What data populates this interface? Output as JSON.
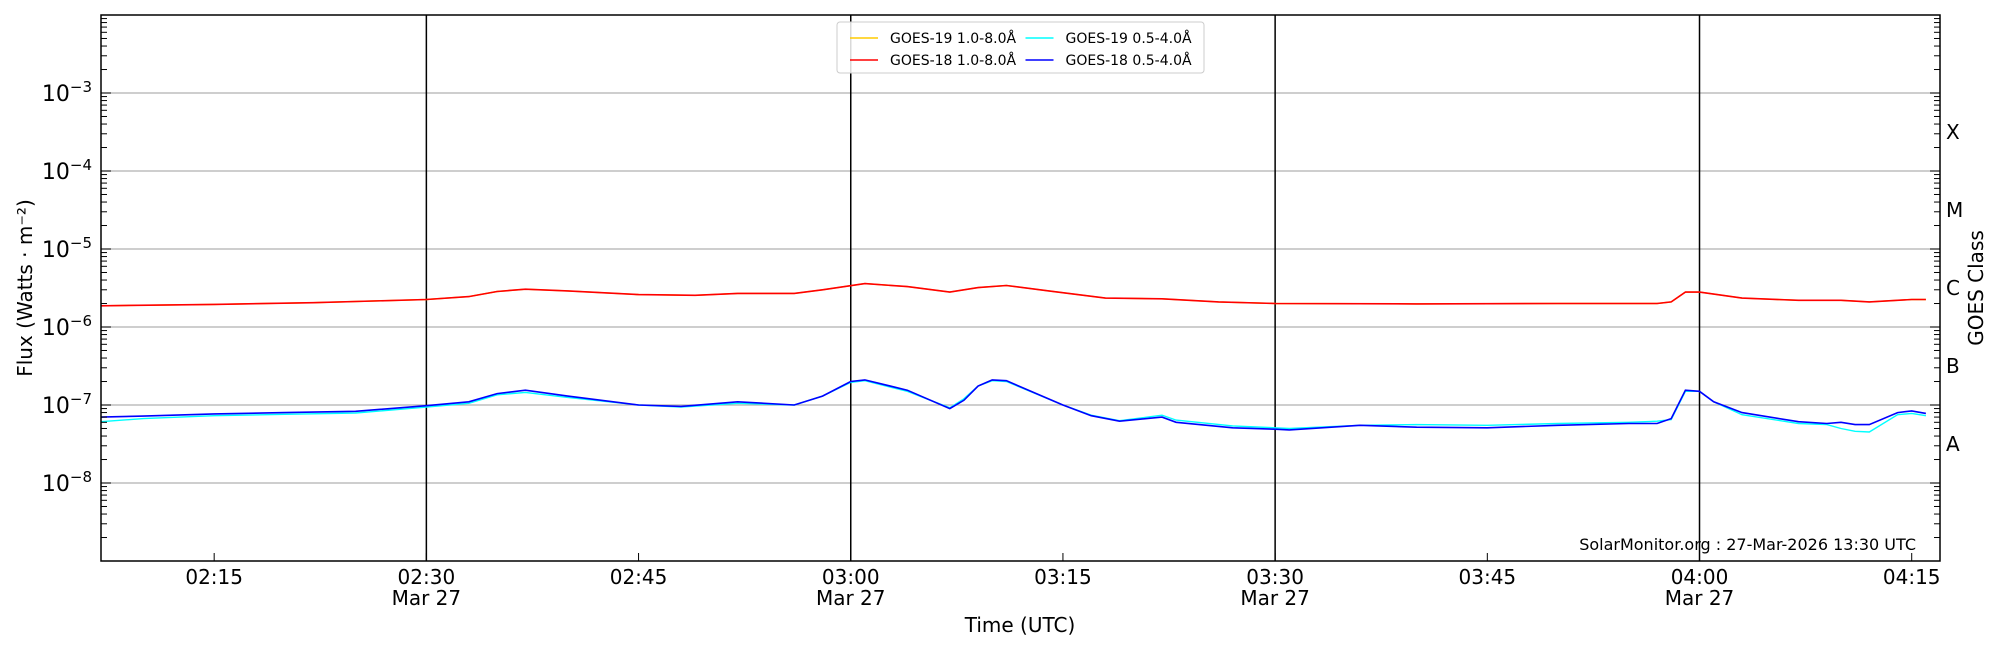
{
  "chart_data": {
    "type": "line",
    "title": "",
    "xlabel": "Time (UTC)",
    "ylabel": "Flux (Watts · m⁻²)",
    "ylabel_right": "GOES Class",
    "yscale": "log",
    "ylim": [
      1e-09,
      0.01
    ],
    "xlim": [
      "02:07",
      "04:17"
    ],
    "grid": "horizontal at decades",
    "legend_placement": "top-center",
    "y_ticks": [
      {
        "value": 0.001,
        "base": "10",
        "exp": "−3"
      },
      {
        "value": 0.0001,
        "base": "10",
        "exp": "−4"
      },
      {
        "value": 1e-05,
        "base": "10",
        "exp": "−5"
      },
      {
        "value": 1e-06,
        "base": "10",
        "exp": "−6"
      },
      {
        "value": 1e-07,
        "base": "10",
        "exp": "−7"
      },
      {
        "value": 1e-08,
        "base": "10",
        "exp": "−8"
      }
    ],
    "class_labels": [
      {
        "label": "X",
        "value": 0.000316
      },
      {
        "label": "M",
        "value": 3.16e-05
      },
      {
        "label": "C",
        "value": 3.16e-06
      },
      {
        "label": "B",
        "value": 3.16e-07
      },
      {
        "label": "A",
        "value": 3.16e-08
      }
    ],
    "x_ticks": [
      {
        "time": "02:15",
        "label": "02:15",
        "sub": ""
      },
      {
        "time": "02:30",
        "label": "02:30",
        "sub": "Mar 27"
      },
      {
        "time": "02:45",
        "label": "02:45",
        "sub": ""
      },
      {
        "time": "03:00",
        "label": "03:00",
        "sub": "Mar 27"
      },
      {
        "time": "03:15",
        "label": "03:15",
        "sub": ""
      },
      {
        "time": "03:30",
        "label": "03:30",
        "sub": "Mar 27"
      },
      {
        "time": "03:45",
        "label": "03:45",
        "sub": ""
      },
      {
        "time": "04:00",
        "label": "04:00",
        "sub": "Mar 27"
      },
      {
        "time": "04:15",
        "label": "04:15",
        "sub": ""
      }
    ],
    "vertical_lines": [
      "02:30",
      "03:00",
      "03:30",
      "04:00"
    ],
    "annotation": "SolarMonitor.org : 27-Mar-2026 13:30 UTC",
    "series": [
      {
        "name": "GOES-19 1.0-8.0Å",
        "color": "#ffcc00",
        "x": [
          "02:07",
          "02:15",
          "02:22",
          "02:30",
          "02:33",
          "02:35",
          "02:37",
          "02:40",
          "02:45",
          "02:49",
          "02:52",
          "02:56",
          "02:58",
          "03:01",
          "03:04",
          "03:07",
          "03:09",
          "03:11",
          "03:14",
          "03:18",
          "03:22",
          "03:26",
          "03:30",
          "03:40",
          "03:50",
          "03:57",
          "03:58",
          "03:59",
          "04:00",
          "04:03",
          "04:07",
          "04:10",
          "04:12",
          "04:15",
          "04:16"
        ],
        "y": [
          1.87e-06,
          1.95e-06,
          2.05e-06,
          2.25e-06,
          2.45e-06,
          2.85e-06,
          3.05e-06,
          2.9e-06,
          2.6e-06,
          2.55e-06,
          2.7e-06,
          2.7e-06,
          3e-06,
          3.6e-06,
          3.3e-06,
          2.8e-06,
          3.2e-06,
          3.4e-06,
          2.9e-06,
          2.35e-06,
          2.3e-06,
          2.1e-06,
          2e-06,
          1.98e-06,
          2e-06,
          2e-06,
          2.1e-06,
          2.8e-06,
          2.8e-06,
          2.35e-06,
          2.2e-06,
          2.2e-06,
          2.1e-06,
          2.25e-06,
          2.25e-06
        ]
      },
      {
        "name": "GOES-18 1.0-8.0Å",
        "color": "#ff0000",
        "x": [
          "02:07",
          "02:15",
          "02:22",
          "02:30",
          "02:33",
          "02:35",
          "02:37",
          "02:40",
          "02:45",
          "02:49",
          "02:52",
          "02:56",
          "02:58",
          "03:01",
          "03:04",
          "03:07",
          "03:09",
          "03:11",
          "03:14",
          "03:18",
          "03:22",
          "03:26",
          "03:30",
          "03:40",
          "03:50",
          "03:57",
          "03:58",
          "03:59",
          "04:00",
          "04:03",
          "04:07",
          "04:10",
          "04:12",
          "04:15",
          "04:16"
        ],
        "y": [
          1.87e-06,
          1.95e-06,
          2.05e-06,
          2.25e-06,
          2.45e-06,
          2.85e-06,
          3.05e-06,
          2.9e-06,
          2.6e-06,
          2.55e-06,
          2.7e-06,
          2.7e-06,
          3e-06,
          3.6e-06,
          3.3e-06,
          2.8e-06,
          3.2e-06,
          3.4e-06,
          2.9e-06,
          2.35e-06,
          2.3e-06,
          2.1e-06,
          2e-06,
          1.98e-06,
          2e-06,
          2e-06,
          2.1e-06,
          2.8e-06,
          2.8e-06,
          2.35e-06,
          2.2e-06,
          2.2e-06,
          2.1e-06,
          2.25e-06,
          2.25e-06
        ]
      },
      {
        "name": "GOES-19 0.5-4.0Å",
        "color": "#00ffff",
        "x": [
          "02:07",
          "02:10",
          "02:15",
          "02:20",
          "02:25",
          "02:30",
          "02:33",
          "02:35",
          "02:37",
          "02:40",
          "02:45",
          "02:48",
          "02:52",
          "02:56",
          "02:58",
          "03:00",
          "03:01",
          "03:04",
          "03:07",
          "03:08",
          "03:09",
          "03:10",
          "03:11",
          "03:15",
          "03:17",
          "03:19",
          "03:22",
          "03:23",
          "03:27",
          "03:30",
          "03:31",
          "03:36",
          "03:40",
          "03:45",
          "03:50",
          "03:55",
          "03:57",
          "03:58",
          "03:59",
          "04:00",
          "04:01",
          "04:03",
          "04:07",
          "04:09",
          "04:10",
          "04:11",
          "04:12",
          "04:14",
          "04:15",
          "04:16"
        ],
        "y": [
          6.1e-08,
          6.7e-08,
          7.3e-08,
          7.6e-08,
          7.9e-08,
          9.4e-08,
          1.05e-07,
          1.35e-07,
          1.45e-07,
          1.25e-07,
          1e-07,
          9.4e-08,
          1.05e-07,
          1e-07,
          1.3e-07,
          1.95e-07,
          2.05e-07,
          1.5e-07,
          9.2e-08,
          1.2e-07,
          1.75e-07,
          2.05e-07,
          2e-07,
          1e-07,
          7.4e-08,
          6.3e-08,
          7.4e-08,
          6.4e-08,
          5.4e-08,
          5.1e-08,
          5e-08,
          5.5e-08,
          5.6e-08,
          5.5e-08,
          5.8e-08,
          6e-08,
          6.2e-08,
          6.5e-08,
          1.5e-07,
          1.5e-07,
          1.1e-07,
          7.5e-08,
          5.8e-08,
          5.6e-08,
          5e-08,
          4.6e-08,
          4.5e-08,
          7.5e-08,
          7.8e-08,
          7.3e-08
        ]
      },
      {
        "name": "GOES-18 0.5-4.0Å",
        "color": "#0000ff",
        "x": [
          "02:07",
          "02:10",
          "02:15",
          "02:20",
          "02:25",
          "02:30",
          "02:33",
          "02:35",
          "02:37",
          "02:40",
          "02:45",
          "02:48",
          "02:52",
          "02:56",
          "02:58",
          "03:00",
          "03:01",
          "03:04",
          "03:07",
          "03:08",
          "03:09",
          "03:10",
          "03:11",
          "03:15",
          "03:17",
          "03:19",
          "03:22",
          "03:23",
          "03:27",
          "03:30",
          "03:31",
          "03:36",
          "03:40",
          "03:45",
          "03:50",
          "03:55",
          "03:57",
          "03:58",
          "03:59",
          "04:00",
          "04:01",
          "04:03",
          "04:07",
          "04:09",
          "04:10",
          "04:11",
          "04:12",
          "04:14",
          "04:15",
          "04:16"
        ],
        "y": [
          7e-08,
          7.2e-08,
          7.7e-08,
          8e-08,
          8.3e-08,
          9.8e-08,
          1.1e-07,
          1.4e-07,
          1.55e-07,
          1.3e-07,
          1e-07,
          9.6e-08,
          1.1e-07,
          1e-07,
          1.3e-07,
          2e-07,
          2.1e-07,
          1.55e-07,
          9e-08,
          1.15e-07,
          1.75e-07,
          2.1e-07,
          2.05e-07,
          1e-07,
          7.3e-08,
          6.2e-08,
          7e-08,
          6e-08,
          5.1e-08,
          4.9e-08,
          4.8e-08,
          5.5e-08,
          5.2e-08,
          5.1e-08,
          5.5e-08,
          5.8e-08,
          5.8e-08,
          6.7e-08,
          1.55e-07,
          1.5e-07,
          1.1e-07,
          8e-08,
          6.1e-08,
          5.8e-08,
          6e-08,
          5.6e-08,
          5.6e-08,
          8e-08,
          8.4e-08,
          7.8e-08
        ]
      }
    ]
  }
}
